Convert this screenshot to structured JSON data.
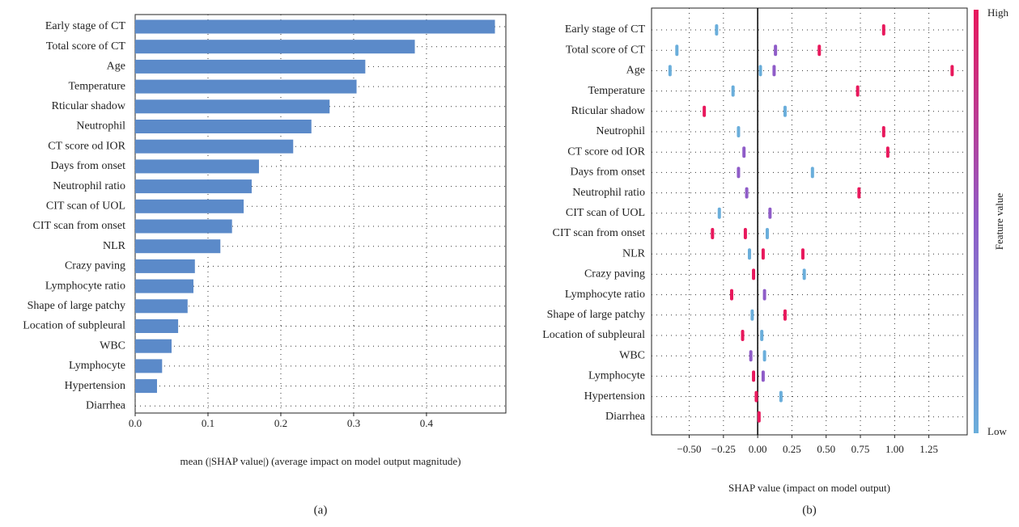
{
  "chart_data": [
    {
      "type": "bar",
      "orientation": "horizontal",
      "color": "#5b8ac9",
      "grid": true,
      "xlabel": "mean (|SHAP value|) (average impact on model output magnitude)",
      "caption": "(a)",
      "categories": [
        "Early stage of CT",
        "Total score of CT",
        "Age",
        "Temperature",
        "Rticular shadow",
        "Neutrophil",
        "CT score od IOR",
        "Days from onset",
        "Neutrophil ratio",
        "CIT scan of UOL",
        "CIT scan from onset",
        "NLR",
        "Crazy paving",
        "Lymphocyte ratio",
        "Shape of large patchy",
        "Location of subpleural",
        "WBC",
        "Lymphocyte",
        "Hypertension",
        "Diarrhea"
      ],
      "values": [
        0.494,
        0.384,
        0.316,
        0.304,
        0.267,
        0.242,
        0.217,
        0.17,
        0.16,
        0.149,
        0.133,
        0.117,
        0.082,
        0.08,
        0.072,
        0.059,
        0.05,
        0.037,
        0.03,
        0
      ],
      "xlim": [
        0,
        0.509
      ],
      "xticks": [
        {
          "value": 0,
          "label": "0.0"
        },
        0.1,
        0.2,
        0.3,
        0.4
      ]
    },
    {
      "type": "scatter",
      "grid": true,
      "xlabel": "SHAP value (impact on model output)",
      "caption": "(b)",
      "categories": [
        "Early stage of CT",
        "Total score of CT",
        "Age",
        "Temperature",
        "Rticular shadow",
        "Neutrophil",
        "CT score od IOR",
        "Days from onset",
        "Neutrophil ratio",
        "CIT scan of UOL",
        "CIT scan from onset",
        "NLR",
        "Crazy paving",
        "Lymphocyte ratio",
        "Shape of large patchy",
        "Location of subpleural",
        "WBC",
        "Lymphocyte",
        "Hypertension",
        "Diarrhea"
      ],
      "rows": [
        {
          "values": [
            -0.3,
            0.92
          ],
          "feature_values": [
            0,
            1
          ]
        },
        {
          "values": [
            -0.59,
            0.13,
            0.45
          ],
          "feature_values": [
            0,
            0.5,
            1
          ]
        },
        {
          "values": [
            -0.64,
            0.02,
            0.12,
            1.42
          ],
          "feature_values": [
            0,
            0,
            0.5,
            1
          ]
        },
        {
          "values": [
            -0.18,
            0.73
          ],
          "feature_values": [
            0,
            1
          ]
        },
        {
          "values": [
            -0.39,
            0.2
          ],
          "feature_values": [
            1,
            0
          ]
        },
        {
          "values": [
            -0.14,
            0.92
          ],
          "feature_values": [
            0,
            1
          ]
        },
        {
          "values": [
            -0.1,
            0.95
          ],
          "feature_values": [
            0.5,
            1
          ]
        },
        {
          "values": [
            -0.14,
            0.4
          ],
          "feature_values": [
            0.5,
            0
          ]
        },
        {
          "values": [
            -0.08,
            0.74
          ],
          "feature_values": [
            0.5,
            1
          ]
        },
        {
          "values": [
            -0.28,
            0.09
          ],
          "feature_values": [
            0,
            0.5
          ]
        },
        {
          "values": [
            -0.33,
            -0.09,
            0.07
          ],
          "feature_values": [
            1,
            1,
            0
          ]
        },
        {
          "values": [
            -0.06,
            0.04,
            0.33
          ],
          "feature_values": [
            0,
            1,
            1
          ]
        },
        {
          "values": [
            -0.03,
            0.34
          ],
          "feature_values": [
            1,
            0
          ]
        },
        {
          "values": [
            -0.19,
            0.05
          ],
          "feature_values": [
            1,
            0.5
          ]
        },
        {
          "values": [
            -0.04,
            0.2
          ],
          "feature_values": [
            0,
            1
          ]
        },
        {
          "values": [
            -0.11,
            0.03
          ],
          "feature_values": [
            1,
            0
          ]
        },
        {
          "values": [
            -0.05,
            0.05
          ],
          "feature_values": [
            0.5,
            0
          ]
        },
        {
          "values": [
            -0.03,
            0.04
          ],
          "feature_values": [
            1,
            0.5
          ]
        },
        {
          "values": [
            -0.01,
            0.17
          ],
          "feature_values": [
            1,
            0
          ]
        },
        {
          "values": [
            0.01
          ],
          "feature_values": [
            1
          ]
        }
      ],
      "xlim": [
        -0.775,
        1.53
      ],
      "xticks": [
        {
          "value": -0.5,
          "label": "−0.50"
        },
        {
          "value": -0.25,
          "label": "−0.25"
        },
        {
          "value": 0,
          "label": "0.00"
        },
        {
          "value": 0.25,
          "label": "0.25"
        },
        {
          "value": 0.5,
          "label": "0.50"
        },
        {
          "value": 0.75,
          "label": "0.75"
        },
        {
          "value": 1,
          "label": "1.00"
        },
        {
          "value": 1.25,
          "label": "1.25"
        }
      ],
      "colorbar": {
        "label": "Feature value",
        "high": "High",
        "low": "Low",
        "colors": [
          "#6aaedb",
          "#8f5cc8",
          "#e8185c"
        ]
      }
    }
  ]
}
